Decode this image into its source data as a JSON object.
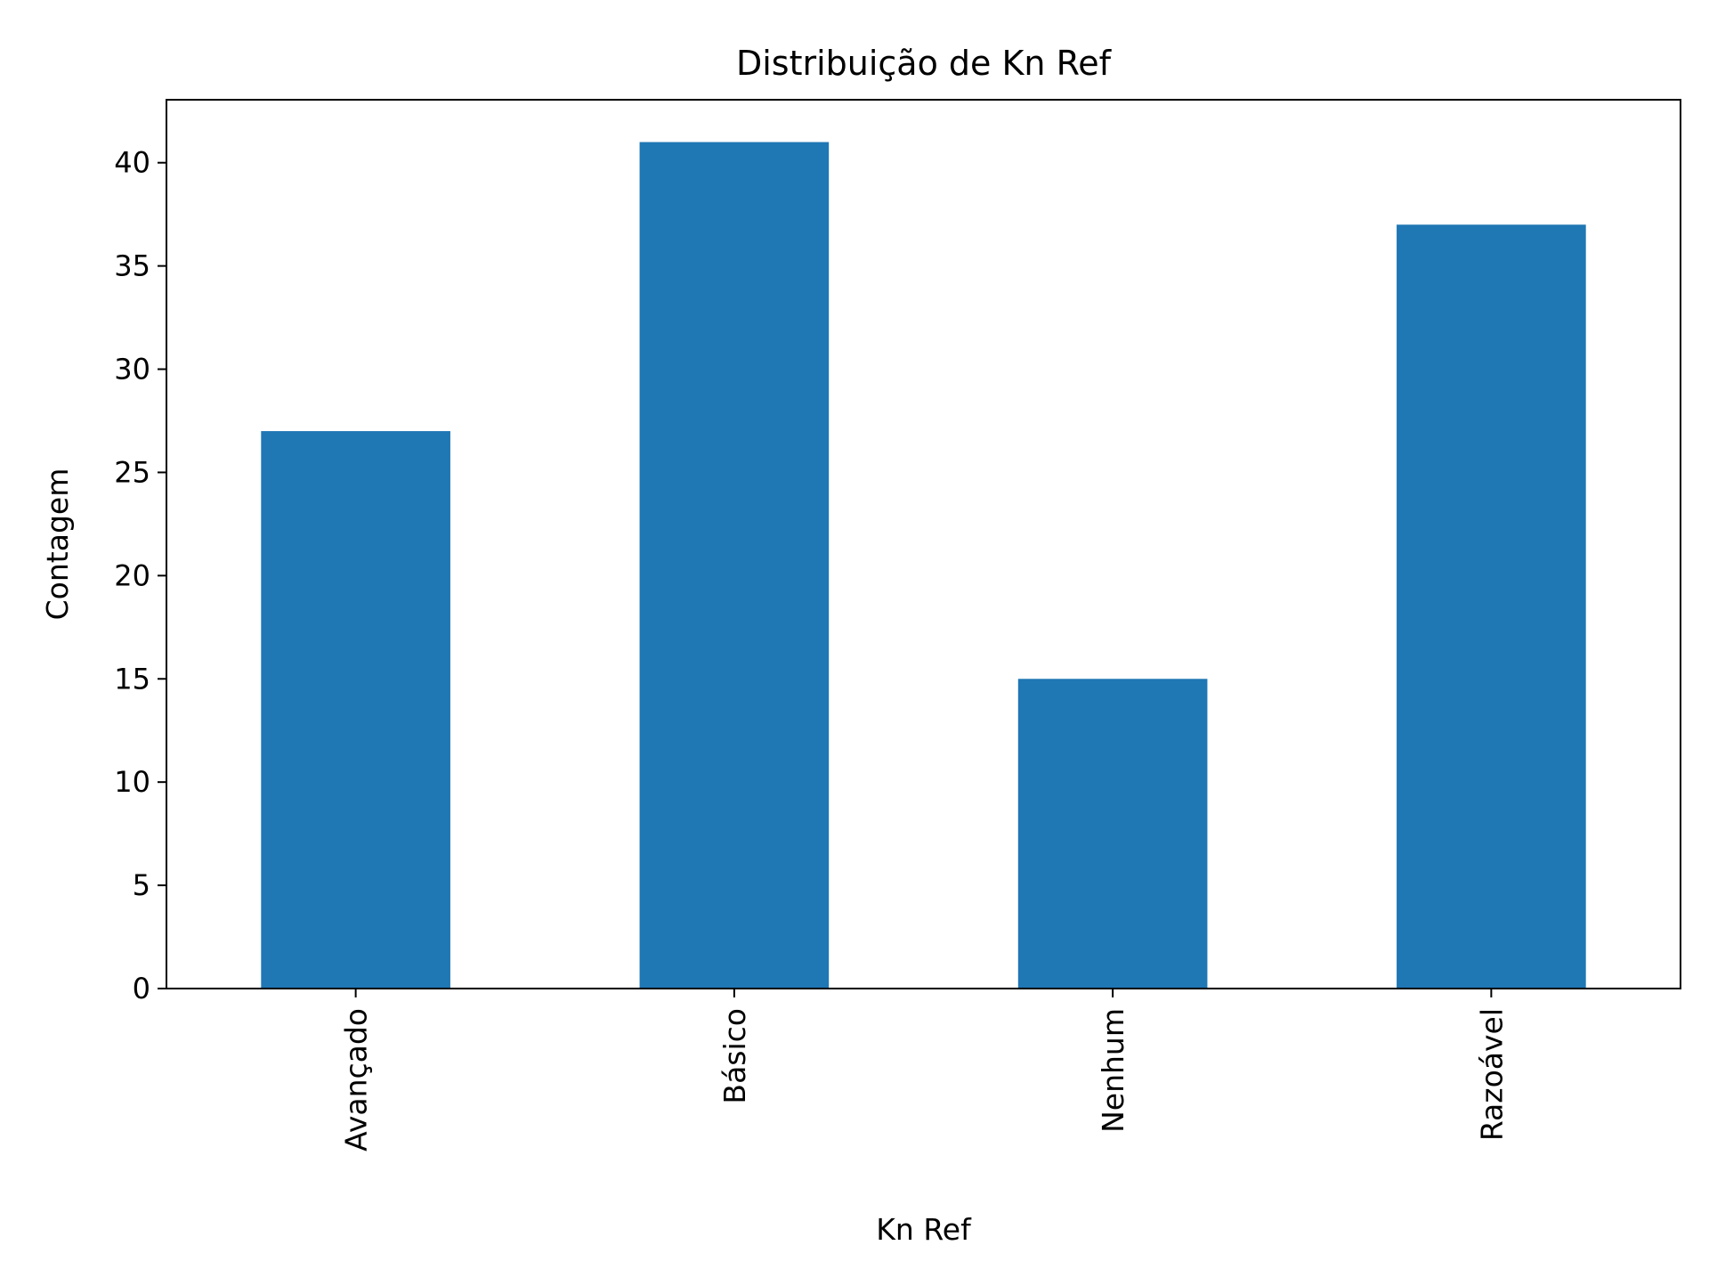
{
  "chart_data": {
    "type": "bar",
    "title": "Distribuição de Kn Ref",
    "xlabel": "Kn Ref",
    "ylabel": "Contagem",
    "categories": [
      "Avançado",
      "Básico",
      "Nenhum",
      "Razoável"
    ],
    "values": [
      27,
      41,
      15,
      37
    ],
    "ylim": [
      0,
      43.05
    ],
    "yticks": [
      0,
      5,
      10,
      15,
      20,
      25,
      30,
      35,
      40
    ],
    "grid": false,
    "legend": "none",
    "bar_color": "#1f77b4",
    "x_tick_rotation": "vertical"
  }
}
